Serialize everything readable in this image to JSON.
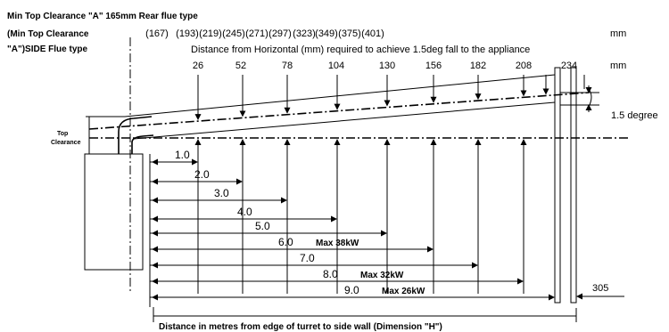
{
  "header": {
    "line1": "Min Top Clearance \"A\" 165mm Rear flue type",
    "line2": "(Min Top Clearance",
    "line3": "\"A\")SIDE Flue type",
    "distance_caption": "Distance from Horizontal (mm) required to achieve 1.5deg fall to the appliance",
    "unit_mm": "mm"
  },
  "side_values": [
    "(167)",
    "(193)",
    "(219)",
    "(245)",
    "(271)",
    "(297)",
    "(323)",
    "(349)",
    "(375)",
    "(401)"
  ],
  "rear_values": [
    "26",
    "52",
    "78",
    "104",
    "130",
    "156",
    "182",
    "208",
    "234"
  ],
  "labels": {
    "top_clearance_1": "Top",
    "top_clearance_2": "Clearance",
    "angle": "1.5 degree",
    "wall_thickness": "305",
    "bottom_caption": "Distance in metres from edge of turret to side wall (Dimension \"H\")"
  },
  "distances": [
    {
      "value": "1.0",
      "max": ""
    },
    {
      "value": "2.0",
      "max": ""
    },
    {
      "value": "3.0",
      "max": ""
    },
    {
      "value": "4.0",
      "max": ""
    },
    {
      "value": "5.0",
      "max": ""
    },
    {
      "value": "6.0",
      "max": "Max 38kW"
    },
    {
      "value": "7.0",
      "max": ""
    },
    {
      "value": "8.0",
      "max": "Max 32kW"
    },
    {
      "value": "9.0",
      "max": "Max 26kW"
    }
  ]
}
